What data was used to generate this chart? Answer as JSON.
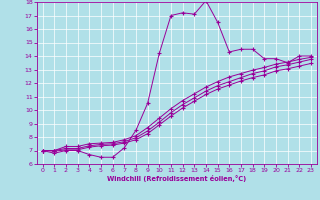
{
  "xlabel": "Windchill (Refroidissement éolien,°C)",
  "bg_color": "#b0e0e8",
  "grid_color": "#ffffff",
  "line_color": "#990099",
  "xlim": [
    -0.5,
    23.5
  ],
  "ylim": [
    6,
    18
  ],
  "xticks": [
    0,
    1,
    2,
    3,
    4,
    5,
    6,
    7,
    8,
    9,
    10,
    11,
    12,
    13,
    14,
    15,
    16,
    17,
    18,
    19,
    20,
    21,
    22,
    23
  ],
  "yticks": [
    6,
    7,
    8,
    9,
    10,
    11,
    12,
    13,
    14,
    15,
    16,
    17,
    18
  ],
  "line1_x": [
    0,
    1,
    2,
    3,
    4,
    5,
    6,
    7,
    8,
    9,
    10,
    11,
    12,
    13,
    14,
    15,
    16,
    17,
    18,
    19,
    20,
    21,
    22,
    23
  ],
  "line1_y": [
    7.0,
    6.8,
    7.0,
    7.0,
    6.7,
    6.5,
    6.5,
    7.2,
    8.5,
    10.5,
    14.2,
    17.0,
    17.2,
    17.1,
    18.1,
    16.5,
    14.3,
    14.5,
    14.5,
    13.8,
    13.8,
    13.5,
    14.0,
    14.0
  ],
  "line2_x": [
    0,
    1,
    2,
    3,
    4,
    5,
    6,
    7,
    8,
    9,
    10,
    11,
    12,
    13,
    14,
    15,
    16,
    17,
    18,
    19,
    20,
    21,
    22,
    23
  ],
  "line2_y": [
    7.0,
    7.0,
    7.3,
    7.3,
    7.5,
    7.55,
    7.6,
    7.8,
    8.1,
    8.7,
    9.4,
    10.1,
    10.7,
    11.2,
    11.7,
    12.1,
    12.45,
    12.7,
    12.95,
    13.15,
    13.4,
    13.55,
    13.75,
    13.9
  ],
  "line3_x": [
    0,
    1,
    2,
    3,
    4,
    5,
    6,
    7,
    8,
    9,
    10,
    11,
    12,
    13,
    14,
    15,
    16,
    17,
    18,
    19,
    20,
    21,
    22,
    23
  ],
  "line3_y": [
    7.0,
    7.0,
    7.15,
    7.15,
    7.35,
    7.45,
    7.5,
    7.65,
    7.95,
    8.45,
    9.1,
    9.8,
    10.4,
    10.9,
    11.4,
    11.8,
    12.1,
    12.4,
    12.7,
    12.9,
    13.2,
    13.35,
    13.55,
    13.75
  ],
  "line4_x": [
    0,
    1,
    2,
    3,
    4,
    5,
    6,
    7,
    8,
    9,
    10,
    11,
    12,
    13,
    14,
    15,
    16,
    17,
    18,
    19,
    20,
    21,
    22,
    23
  ],
  "line4_y": [
    7.0,
    6.95,
    7.05,
    7.05,
    7.25,
    7.35,
    7.4,
    7.55,
    7.8,
    8.25,
    8.9,
    9.55,
    10.15,
    10.65,
    11.15,
    11.55,
    11.85,
    12.15,
    12.4,
    12.6,
    12.9,
    13.05,
    13.25,
    13.45
  ]
}
